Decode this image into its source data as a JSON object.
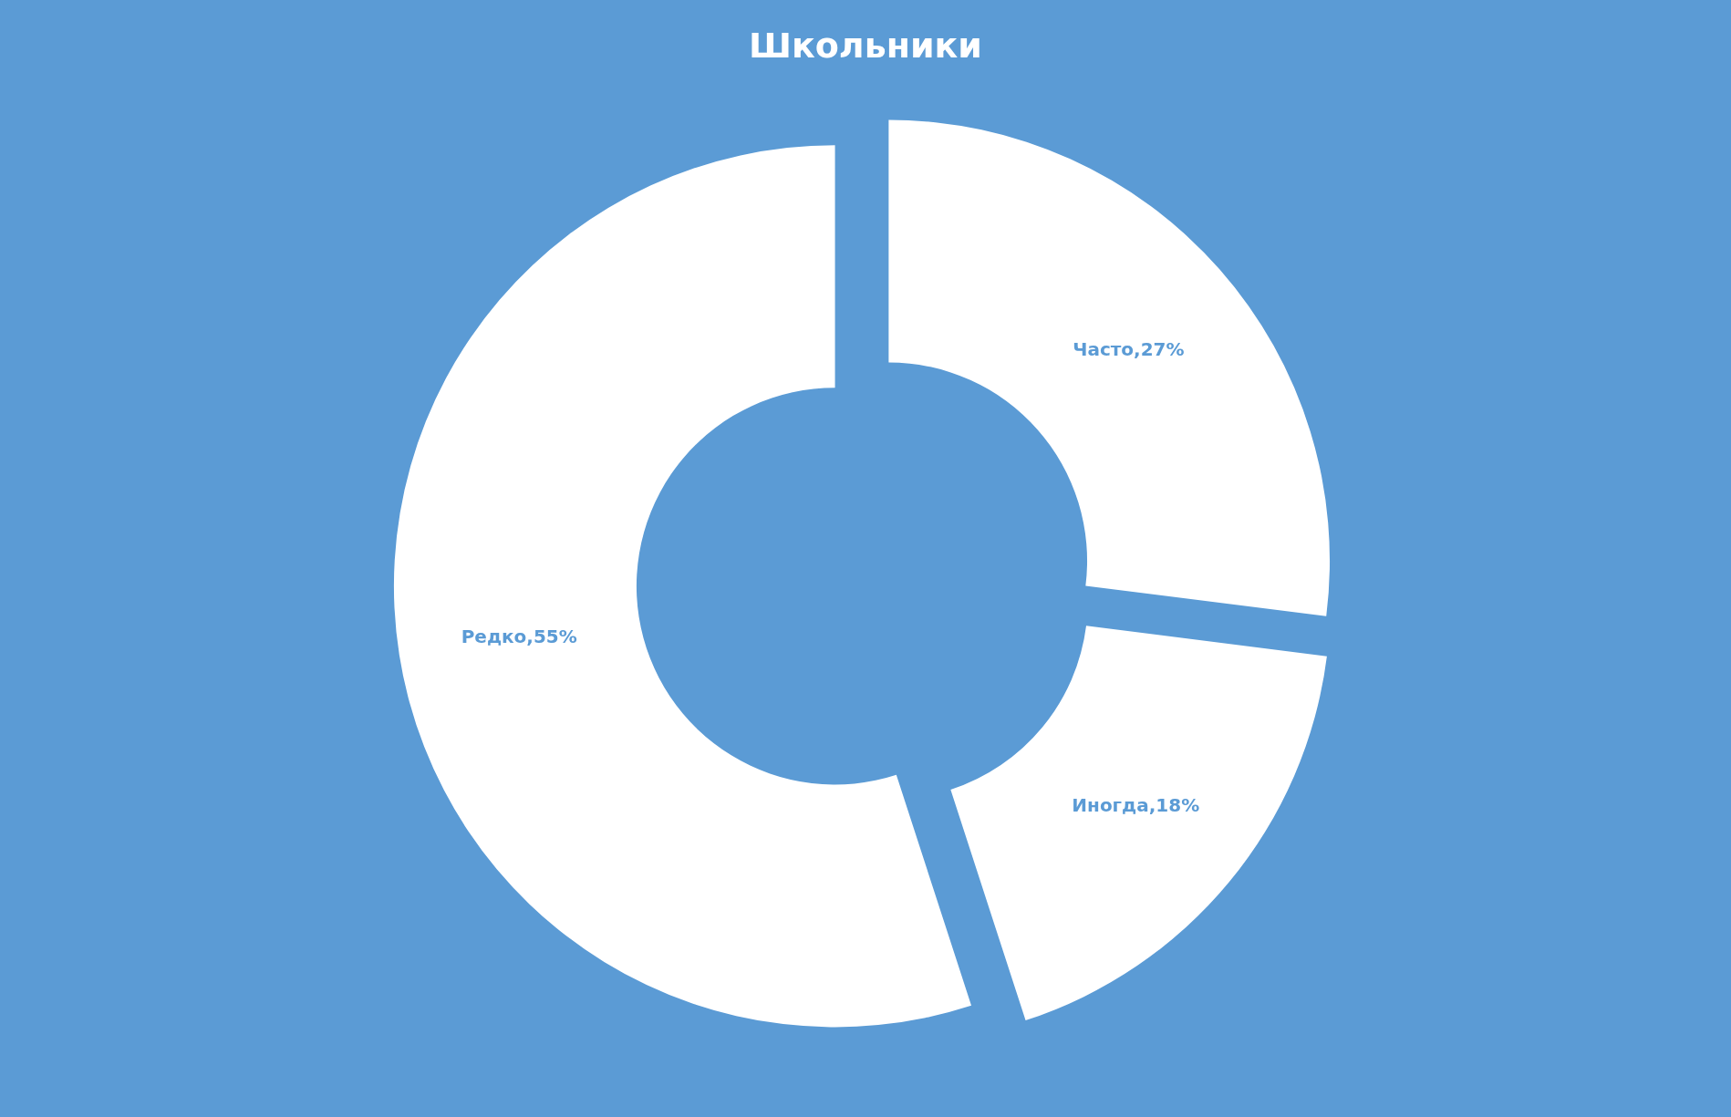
{
  "chart_data": {
    "type": "donut",
    "title": "Школьники",
    "categories": [
      "Часто",
      "Иногда",
      "Редко"
    ],
    "values": [
      27,
      18,
      55
    ],
    "value_labels": [
      "27%",
      "18%",
      "55%"
    ],
    "colors": [
      "#ffffff",
      "#ffffff",
      "#ffffff"
    ],
    "legend": false
  }
}
